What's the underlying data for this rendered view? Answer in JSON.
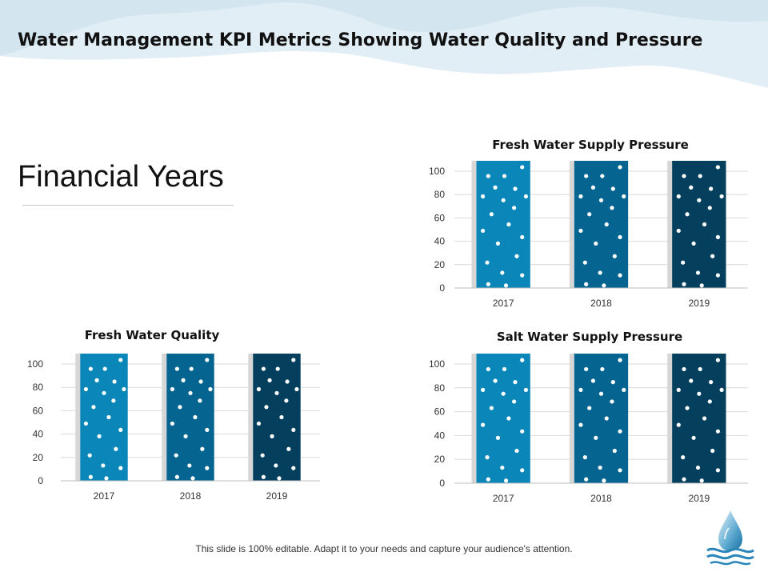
{
  "slide": {
    "title": "Water Management KPI Metrics Showing Water Quality and Pressure",
    "heading": "Financial Years",
    "footer": "This slide is 100% editable. Adapt it to your needs and capture your audience's attention."
  },
  "colors": {
    "bar_2017": "#0a86b8",
    "bar_2018": "#066491",
    "bar_2019": "#043f5e",
    "bar_shadow": "#d6d6d6",
    "dots": "#ffffff",
    "wave": "#dcebf3",
    "grid": "#d9d9d9"
  },
  "icons": [
    "water-drop-logo-icon"
  ],
  "chart_data": [
    {
      "type": "bar",
      "title": "Fresh Water Supply Pressure",
      "categories": [
        "2017",
        "2018",
        "2019"
      ],
      "values": [
        100,
        100,
        100
      ],
      "ylim": [
        0,
        100
      ],
      "yticks": [
        0,
        20,
        40,
        60,
        80,
        100
      ],
      "grid": true,
      "legend": "none"
    },
    {
      "type": "bar",
      "title": "Fresh Water Quality",
      "categories": [
        "2017",
        "2018",
        "2019"
      ],
      "values": [
        100,
        100,
        100
      ],
      "ylim": [
        0,
        100
      ],
      "yticks": [
        0,
        20,
        40,
        60,
        80,
        100
      ],
      "grid": true,
      "legend": "none"
    },
    {
      "type": "bar",
      "title": "Salt Water Supply Pressure",
      "categories": [
        "2017",
        "2018",
        "2019"
      ],
      "values": [
        100,
        100,
        100
      ],
      "ylim": [
        0,
        100
      ],
      "yticks": [
        0,
        20,
        40,
        60,
        80,
        100
      ],
      "grid": true,
      "legend": "none"
    }
  ]
}
